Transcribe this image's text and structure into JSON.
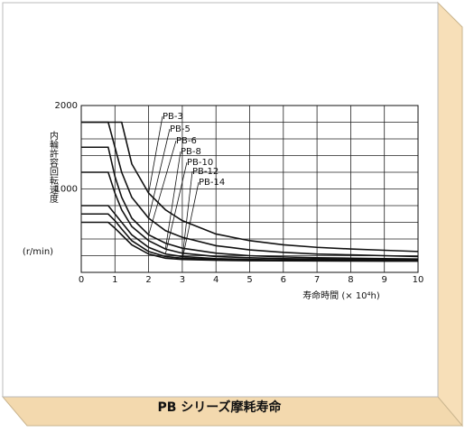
{
  "chart_data": {
    "type": "line",
    "y_label": "内輪許容回転速度",
    "y_unit": "(r/min)",
    "x_label": "寿命時間 (× 10⁴h)",
    "caption": "PB シリーズ摩耗寿命",
    "x": [
      0,
      0.5,
      0.8,
      1,
      1.2,
      1.5,
      2,
      2.5,
      3,
      4,
      5,
      6,
      7,
      8,
      9,
      10
    ],
    "xlim": [
      0,
      10
    ],
    "xticks": [
      0,
      1,
      2,
      3,
      4,
      5,
      6,
      7,
      8,
      9,
      10
    ],
    "ylim": [
      0,
      2000
    ],
    "yticks": [
      1000,
      2000
    ],
    "ygrid": [
      0,
      200,
      400,
      600,
      800,
      1000,
      1200,
      1400,
      1600,
      1800,
      2000
    ],
    "grid": true,
    "series": [
      {
        "name": "PB-3",
        "color": "#111111",
        "values": [
          1800,
          1800,
          1800,
          1800,
          1800,
          1300,
          950,
          750,
          620,
          460,
          380,
          330,
          300,
          280,
          265,
          250
        ]
      },
      {
        "name": "PB-5",
        "color": "#111111",
        "values": [
          1800,
          1800,
          1800,
          1500,
          1200,
          900,
          650,
          500,
          420,
          320,
          270,
          240,
          220,
          210,
          200,
          190
        ]
      },
      {
        "name": "PB-6",
        "color": "#111111",
        "values": [
          1500,
          1500,
          1500,
          1150,
          900,
          650,
          450,
          350,
          290,
          230,
          200,
          185,
          175,
          170,
          165,
          160
        ]
      },
      {
        "name": "PB-8",
        "color": "#111111",
        "values": [
          1200,
          1200,
          1200,
          950,
          750,
          550,
          380,
          280,
          230,
          190,
          175,
          165,
          160,
          155,
          152,
          150
        ]
      },
      {
        "name": "PB-10",
        "color": "#111111",
        "values": [
          800,
          800,
          800,
          700,
          600,
          450,
          300,
          220,
          190,
          165,
          155,
          150,
          148,
          147,
          146,
          145
        ]
      },
      {
        "name": "PB-12",
        "color": "#111111",
        "values": [
          700,
          700,
          700,
          620,
          520,
          380,
          250,
          190,
          170,
          155,
          148,
          145,
          143,
          142,
          141,
          140
        ]
      },
      {
        "name": "PB-14",
        "color": "#111111",
        "values": [
          600,
          600,
          600,
          530,
          450,
          330,
          220,
          170,
          155,
          145,
          140,
          138,
          137,
          136,
          135,
          135
        ]
      }
    ]
  }
}
